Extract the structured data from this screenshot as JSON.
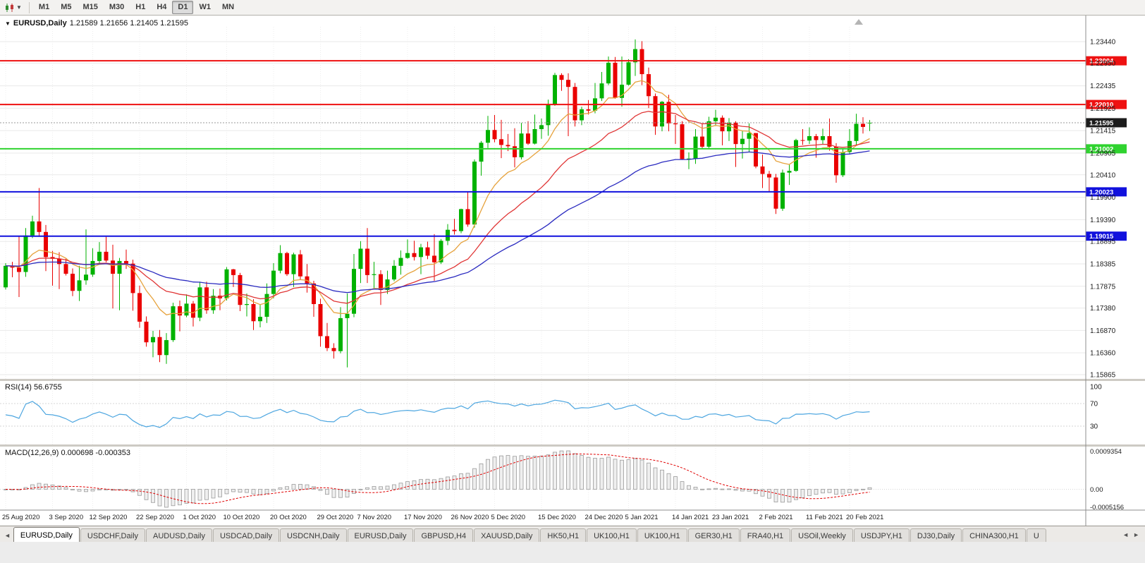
{
  "toolbar": {
    "chart_type_icon": "candlestick-chart",
    "dropdown_icon": "chevron-down",
    "timeframes": [
      "M1",
      "M5",
      "M15",
      "M30",
      "H1",
      "H4",
      "D1",
      "W1",
      "MN"
    ],
    "active_timeframe": "D1"
  },
  "chart_window": {
    "title_symbol": "EURUSD,Daily",
    "title_ohlc": "1.21589 1.21656 1.21405 1.21595"
  },
  "chart_data": {
    "type": "candlestick",
    "symbol": "EURUSD",
    "timeframe": "Daily",
    "ohlc_display": {
      "open": "1.21589",
      "high": "1.21656",
      "low": "1.21405",
      "close": "1.21595"
    },
    "current_price": "1.21595",
    "ylim": [
      1.156,
      1.238
    ],
    "price_axis_labels": [
      "1.23440",
      "1.22950",
      "1.22435",
      "1.21925",
      "1.21415",
      "1.20905",
      "1.20410",
      "1.19900",
      "1.19390",
      "1.18895",
      "1.18385",
      "1.17875",
      "1.17380",
      "1.16870",
      "1.16360",
      "1.15865"
    ],
    "hlines": [
      {
        "price": 1.23004,
        "label": "1.23004",
        "color": "#ee1111"
      },
      {
        "price": 1.2201,
        "label": "1.22010",
        "color": "#ee1111"
      },
      {
        "price": 1.21002,
        "label": "1.21002",
        "color": "#2fd32f"
      },
      {
        "price": 1.20023,
        "label": "1.20023",
        "color": "#1111dd"
      },
      {
        "price": 1.19015,
        "label": "1.19015",
        "color": "#1111dd"
      }
    ],
    "x_tick_labels": [
      "25 Aug 2020",
      "3 Sep 2020",
      "12 Sep 2020",
      "22 Sep 2020",
      "1 Oct 2020",
      "10 Oct 2020",
      "20 Oct 2020",
      "29 Oct 2020",
      "7 Nov 2020",
      "17 Nov 2020",
      "26 Nov 2020",
      "5 Dec 2020",
      "15 Dec 2020",
      "24 Dec 2020",
      "5 Jan 2021",
      "14 Jan 2021",
      "23 Jan 2021",
      "2 Feb 2021",
      "11 Feb 2021",
      "20 Feb 2021"
    ],
    "x_tick_indices": [
      0,
      7,
      13,
      20,
      27,
      33,
      40,
      47,
      53,
      60,
      67,
      73,
      80,
      87,
      93,
      100,
      106,
      113,
      120,
      126
    ],
    "overlays": [
      {
        "name": "ma-fast-orange",
        "period": 10,
        "color": "#e6a23c"
      },
      {
        "name": "ma-mid-red",
        "period": 24,
        "color": "#e03535"
      },
      {
        "name": "ma-slow-blue",
        "period": 55,
        "color": "#2b2bc0"
      }
    ],
    "rsi": {
      "label": "RSI(14) 56.6755",
      "period": 14,
      "levels": [
        "100",
        "70",
        "30"
      ],
      "color": "#4da6e0"
    },
    "macd": {
      "label": "MACD(12,26,9) 0.000698 -0.000353",
      "fast": 12,
      "slow": 26,
      "signal": 9,
      "axis_labels": [
        "0.0009354",
        "0.00",
        "-0.0005156"
      ]
    },
    "candles": [
      [
        1.1785,
        1.184,
        1.178,
        1.1834
      ],
      [
        1.1834,
        1.1843,
        1.1808,
        1.183
      ],
      [
        1.183,
        1.1902,
        1.1763,
        1.182
      ],
      [
        1.182,
        1.192,
        1.1809,
        1.1903
      ],
      [
        1.1903,
        1.1948,
        1.1897,
        1.1935
      ],
      [
        1.1935,
        1.2011,
        1.19,
        1.1911
      ],
      [
        1.1911,
        1.1927,
        1.1822,
        1.1854
      ],
      [
        1.1854,
        1.1868,
        1.1789,
        1.185
      ],
      [
        1.185,
        1.1865,
        1.1781,
        1.1838
      ],
      [
        1.1838,
        1.185,
        1.1812,
        1.1816
      ],
      [
        1.1816,
        1.1828,
        1.1765,
        1.1777
      ],
      [
        1.1777,
        1.1834,
        1.1754,
        1.1801
      ],
      [
        1.1801,
        1.1917,
        1.1791,
        1.1814
      ],
      [
        1.1814,
        1.1874,
        1.1809,
        1.1845
      ],
      [
        1.1845,
        1.1888,
        1.1839,
        1.1866
      ],
      [
        1.1866,
        1.19,
        1.1842,
        1.1846
      ],
      [
        1.1846,
        1.1882,
        1.1737,
        1.1816
      ],
      [
        1.1816,
        1.1852,
        1.1733,
        1.1845
      ],
      [
        1.1845,
        1.1871,
        1.1827,
        1.1839
      ],
      [
        1.1839,
        1.1848,
        1.1732,
        1.1772
      ],
      [
        1.1772,
        1.1789,
        1.1693,
        1.1707
      ],
      [
        1.1707,
        1.1719,
        1.165,
        1.166
      ],
      [
        1.166,
        1.1686,
        1.1626,
        1.1672
      ],
      [
        1.1672,
        1.1688,
        1.1615,
        1.1631
      ],
      [
        1.1631,
        1.1681,
        1.1611,
        1.1665
      ],
      [
        1.1665,
        1.175,
        1.1661,
        1.1742
      ],
      [
        1.1742,
        1.1755,
        1.1685,
        1.1721
      ],
      [
        1.1721,
        1.1769,
        1.1717,
        1.1748
      ],
      [
        1.1748,
        1.1754,
        1.1696,
        1.1716
      ],
      [
        1.1716,
        1.1798,
        1.1708,
        1.1785
      ],
      [
        1.1785,
        1.1798,
        1.1725,
        1.1733
      ],
      [
        1.1733,
        1.1781,
        1.1725,
        1.1766
      ],
      [
        1.1766,
        1.1782,
        1.1733,
        1.176
      ],
      [
        1.176,
        1.1831,
        1.1755,
        1.1826
      ],
      [
        1.1826,
        1.1827,
        1.1786,
        1.1813
      ],
      [
        1.1813,
        1.1818,
        1.1731,
        1.1745
      ],
      [
        1.1745,
        1.1771,
        1.1719,
        1.1747
      ],
      [
        1.1747,
        1.1758,
        1.1688,
        1.1708
      ],
      [
        1.1708,
        1.1747,
        1.1694,
        1.1718
      ],
      [
        1.1718,
        1.1794,
        1.1704,
        1.177
      ],
      [
        1.177,
        1.184,
        1.176,
        1.1823
      ],
      [
        1.1823,
        1.1881,
        1.1817,
        1.1863
      ],
      [
        1.1863,
        1.1866,
        1.1811,
        1.1815
      ],
      [
        1.1815,
        1.1864,
        1.1786,
        1.186
      ],
      [
        1.186,
        1.187,
        1.1803,
        1.181
      ],
      [
        1.181,
        1.1838,
        1.1773,
        1.1794
      ],
      [
        1.1794,
        1.18,
        1.1718,
        1.1747
      ],
      [
        1.1747,
        1.1759,
        1.165,
        1.1674
      ],
      [
        1.1674,
        1.1704,
        1.164,
        1.1647
      ],
      [
        1.1647,
        1.1658,
        1.1623,
        1.164
      ],
      [
        1.164,
        1.174,
        1.1635,
        1.1715
      ],
      [
        1.1715,
        1.1771,
        1.1603,
        1.1725
      ],
      [
        1.1725,
        1.1861,
        1.1717,
        1.1827
      ],
      [
        1.1827,
        1.189,
        1.1795,
        1.1873
      ],
      [
        1.1873,
        1.192,
        1.1795,
        1.1813
      ],
      [
        1.1813,
        1.1843,
        1.1781,
        1.1815
      ],
      [
        1.1815,
        1.1824,
        1.1745,
        1.1779
      ],
      [
        1.1779,
        1.1823,
        1.177,
        1.1803
      ],
      [
        1.1803,
        1.1847,
        1.1799,
        1.1834
      ],
      [
        1.1834,
        1.1869,
        1.1814,
        1.1852
      ],
      [
        1.1852,
        1.1894,
        1.185,
        1.1863
      ],
      [
        1.1863,
        1.1891,
        1.1846,
        1.1854
      ],
      [
        1.1854,
        1.1884,
        1.1815,
        1.1876
      ],
      [
        1.1876,
        1.1889,
        1.1849,
        1.1857
      ],
      [
        1.1857,
        1.1906,
        1.18,
        1.1842
      ],
      [
        1.1842,
        1.1895,
        1.1838,
        1.1891
      ],
      [
        1.1891,
        1.1929,
        1.1881,
        1.1916
      ],
      [
        1.1916,
        1.1941,
        1.1905,
        1.1913
      ],
      [
        1.1913,
        1.1964,
        1.1908,
        1.1963
      ],
      [
        1.1963,
        1.2003,
        1.1923,
        1.1928
      ],
      [
        1.1928,
        1.2076,
        1.1921,
        1.2071
      ],
      [
        1.2071,
        1.2118,
        1.2039,
        1.2114
      ],
      [
        1.2114,
        1.2175,
        1.2102,
        1.2143
      ],
      [
        1.2143,
        1.2177,
        1.2115,
        1.2122
      ],
      [
        1.2122,
        1.2166,
        1.2079,
        1.2109
      ],
      [
        1.2109,
        1.2134,
        1.2095,
        1.2106
      ],
      [
        1.2106,
        1.2147,
        1.2058,
        1.2081
      ],
      [
        1.2081,
        1.2159,
        1.2076,
        1.2135
      ],
      [
        1.2135,
        1.2163,
        1.2109,
        1.2112
      ],
      [
        1.2112,
        1.2178,
        1.211,
        1.2145
      ],
      [
        1.2145,
        1.2169,
        1.2123,
        1.2154
      ],
      [
        1.2154,
        1.2212,
        1.213,
        1.22
      ],
      [
        1.22,
        1.2273,
        1.2198,
        1.2268
      ],
      [
        1.2268,
        1.2272,
        1.2232,
        1.2257
      ],
      [
        1.2257,
        1.2272,
        1.2129,
        1.2241
      ],
      [
        1.2241,
        1.225,
        1.2151,
        1.2165
      ],
      [
        1.2165,
        1.2196,
        1.2154,
        1.219
      ],
      [
        1.219,
        1.2211,
        1.2178,
        1.2187
      ],
      [
        1.2187,
        1.225,
        1.2181,
        1.2215
      ],
      [
        1.2215,
        1.2275,
        1.2209,
        1.2249
      ],
      [
        1.2249,
        1.231,
        1.2245,
        1.2296
      ],
      [
        1.2296,
        1.2309,
        1.2214,
        1.2216
      ],
      [
        1.2216,
        1.231,
        1.2196,
        1.2246
      ],
      [
        1.2246,
        1.2304,
        1.2244,
        1.2297
      ],
      [
        1.2297,
        1.2349,
        1.2266,
        1.2327
      ],
      [
        1.2327,
        1.2345,
        1.2245,
        1.227
      ],
      [
        1.227,
        1.2285,
        1.2193,
        1.222
      ],
      [
        1.222,
        1.2226,
        1.2132,
        1.2151
      ],
      [
        1.2151,
        1.2209,
        1.214,
        1.2207
      ],
      [
        1.2207,
        1.2223,
        1.214,
        1.2158
      ],
      [
        1.2158,
        1.2177,
        1.2111,
        1.2156
      ],
      [
        1.2156,
        1.2163,
        1.2075,
        1.2077
      ],
      [
        1.2077,
        1.2092,
        1.2054,
        1.2078
      ],
      [
        1.2078,
        1.2145,
        1.2066,
        1.2128
      ],
      [
        1.2128,
        1.2158,
        1.2101,
        1.2105
      ],
      [
        1.2105,
        1.2173,
        1.2102,
        1.2163
      ],
      [
        1.2163,
        1.2189,
        1.2152,
        1.2171
      ],
      [
        1.2171,
        1.2176,
        1.2108,
        1.214
      ],
      [
        1.214,
        1.217,
        1.2118,
        1.216
      ],
      [
        1.216,
        1.2163,
        1.2059,
        1.2111
      ],
      [
        1.2111,
        1.2142,
        1.2078,
        1.2123
      ],
      [
        1.2123,
        1.2158,
        1.2093,
        1.2136
      ],
      [
        1.2136,
        1.2136,
        1.2056,
        1.206
      ],
      [
        1.206,
        1.2087,
        1.2011,
        1.2043
      ],
      [
        1.2043,
        1.205,
        1.2003,
        1.2035
      ],
      [
        1.2035,
        1.2043,
        1.1952,
        1.1964
      ],
      [
        1.1964,
        1.2053,
        1.1959,
        1.2046
      ],
      [
        1.2046,
        1.2064,
        1.2018,
        1.205
      ],
      [
        1.205,
        1.2123,
        1.2048,
        1.212
      ],
      [
        1.212,
        1.2145,
        1.2109,
        1.2119
      ],
      [
        1.2119,
        1.2149,
        1.2111,
        1.2129
      ],
      [
        1.2129,
        1.2134,
        1.208,
        1.212
      ],
      [
        1.212,
        1.2146,
        1.211,
        1.2129
      ],
      [
        1.2129,
        1.2169,
        1.2096,
        1.2105
      ],
      [
        1.2105,
        1.2113,
        1.2023,
        1.204
      ],
      [
        1.204,
        1.2101,
        1.2036,
        1.2093
      ],
      [
        1.2093,
        1.2145,
        1.2087,
        1.2118
      ],
      [
        1.2118,
        1.218,
        1.2107,
        1.2157
      ],
      [
        1.2157,
        1.2172,
        1.2135,
        1.215
      ],
      [
        1.21589,
        1.21656,
        1.21405,
        1.21595
      ]
    ]
  },
  "tabbar": {
    "scroll_left_icon": "◄",
    "scroll_right_icons": [
      "◄",
      "►"
    ],
    "active_index": 0,
    "tabs": [
      "EURUSD,Daily",
      "USDCHF,Daily",
      "AUDUSD,Daily",
      "USDCAD,Daily",
      "USDCNH,Daily",
      "EURUSD,Daily",
      "GBPUSD,H4",
      "XAUUSD,Daily",
      "HK50,H1",
      "UK100,H1",
      "UK100,H1",
      "GER30,H1",
      "FRA40,H1",
      "USOil,Weekly",
      "USDJPY,H1",
      "DJ30,Daily",
      "CHINA300,H1",
      "U"
    ]
  }
}
